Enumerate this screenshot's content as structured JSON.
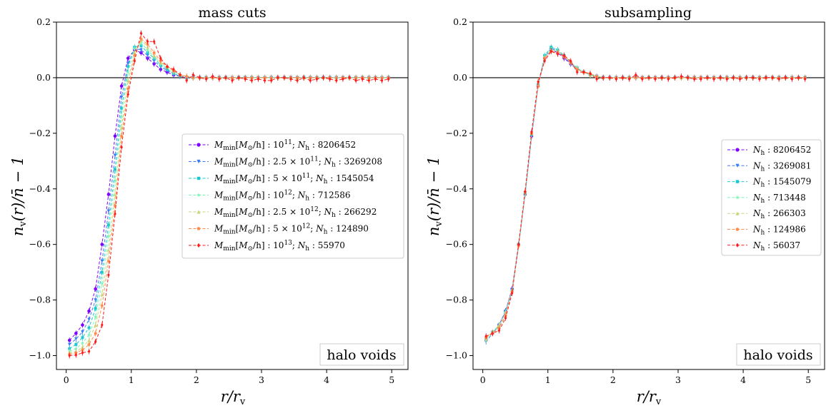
{
  "chart_data": [
    {
      "type": "line",
      "title": "mass cuts",
      "xlabel": "r/r_v",
      "ylabel": "n_v(r)/n̄ − 1",
      "xlim": [
        -0.15,
        5.25
      ],
      "ylim": [
        -1.05,
        0.2
      ],
      "xticks": [
        "0",
        "1",
        "2",
        "3",
        "4",
        "5"
      ],
      "yticks": [
        "−1.0",
        "−0.8",
        "−0.6",
        "−0.4",
        "−0.2",
        "0.0",
        "0.2"
      ],
      "annotation": "halo voids",
      "legend_position": "center-right",
      "reference_line_y": 0.0,
      "x": [
        0.05,
        0.15,
        0.25,
        0.35,
        0.45,
        0.55,
        0.65,
        0.75,
        0.85,
        0.95,
        1.05,
        1.15,
        1.25,
        1.35,
        1.45,
        1.55,
        1.65,
        1.75,
        1.85,
        1.95,
        2.05,
        2.15,
        2.25,
        2.35,
        2.45,
        2.55,
        2.65,
        2.75,
        2.85,
        2.95,
        3.05,
        3.15,
        3.25,
        3.35,
        3.45,
        3.55,
        3.65,
        3.75,
        3.85,
        3.95,
        4.05,
        4.15,
        4.25,
        4.35,
        4.45,
        4.55,
        4.65,
        4.75,
        4.85,
        4.95
      ],
      "series": [
        {
          "name": "M_min[M_⊙/h] : 10^11; N_h : 8206452",
          "color": "#7f00ff",
          "marker": "o",
          "values": [
            -0.945,
            -0.92,
            -0.89,
            -0.84,
            -0.76,
            -0.6,
            -0.42,
            -0.21,
            -0.03,
            0.07,
            0.1,
            0.09,
            0.07,
            0.05,
            0.03,
            0.02,
            0.01,
            0.005,
            0.0,
            0.0,
            0.0,
            0.0,
            0.0,
            0.0,
            0.0,
            0.0,
            0.0,
            0.0,
            0.0,
            0.0,
            0.0,
            0.0,
            0.0,
            0.0,
            0.0,
            0.0,
            0.0,
            0.0,
            0.0,
            0.0,
            0.0,
            0.0,
            0.0,
            0.0,
            0.0,
            0.0,
            0.0,
            0.0,
            0.0,
            0.0
          ]
        },
        {
          "name": "M_min[M_⊙/h] : 2.5 × 10^11; N_h : 3269208",
          "color": "#3b7cf6",
          "marker": "v",
          "values": [
            -0.96,
            -0.94,
            -0.915,
            -0.87,
            -0.8,
            -0.66,
            -0.48,
            -0.28,
            -0.07,
            0.05,
            0.105,
            0.1,
            0.08,
            0.06,
            0.04,
            0.025,
            0.015,
            0.005,
            0.0,
            0.0,
            0.0,
            0.0,
            0.0,
            0.0,
            0.0,
            0.0,
            0.0,
            0.0,
            0.0,
            0.0,
            0.0,
            0.0,
            0.0,
            0.0,
            0.0,
            0.0,
            0.0,
            0.0,
            0.0,
            0.0,
            0.0,
            0.0,
            0.0,
            0.0,
            0.0,
            0.0,
            0.0,
            0.0,
            0.0,
            0.0
          ]
        },
        {
          "name": "M_min[M_⊙/h] : 5 × 10^11; N_h : 1545054",
          "color": "#1cc8cf",
          "marker": "s",
          "values": [
            -0.975,
            -0.96,
            -0.935,
            -0.9,
            -0.83,
            -0.7,
            -0.53,
            -0.33,
            -0.11,
            0.04,
            0.11,
            0.115,
            0.09,
            0.07,
            0.045,
            0.03,
            0.015,
            0.005,
            0.0,
            0.0,
            0.0,
            0.0,
            0.0,
            0.0,
            0.0,
            0.0,
            0.0,
            0.0,
            0.0,
            0.0,
            0.0,
            0.0,
            0.0,
            0.0,
            0.0,
            0.0,
            0.0,
            0.0,
            0.0,
            0.0,
            0.0,
            0.0,
            0.0,
            0.0,
            0.0,
            0.0,
            0.0,
            0.0,
            0.0,
            0.0
          ]
        },
        {
          "name": "M_min[M_⊙/h] : 10^12; N_h : 712586",
          "color": "#7ff5b8",
          "marker": "*",
          "values": [
            -0.985,
            -0.975,
            -0.955,
            -0.925,
            -0.86,
            -0.74,
            -0.57,
            -0.37,
            -0.14,
            0.02,
            0.105,
            0.125,
            0.1,
            0.075,
            0.05,
            0.035,
            0.02,
            0.01,
            0.005,
            0.0,
            0.0,
            0.0,
            0.0,
            0.0,
            0.0,
            0.0,
            0.0,
            0.0,
            0.0,
            0.0,
            0.0,
            0.0,
            0.0,
            0.0,
            0.0,
            0.0,
            0.0,
            0.0,
            0.0,
            0.0,
            0.0,
            0.0,
            0.0,
            0.0,
            0.0,
            0.0,
            0.0,
            0.0,
            0.0,
            0.0
          ]
        },
        {
          "name": "M_min[M_⊙/h] : 2.5 × 10^12; N_h : 266292",
          "color": "#c7d77a",
          "marker": "^",
          "values": [
            -0.99,
            -0.985,
            -0.97,
            -0.945,
            -0.89,
            -0.78,
            -0.62,
            -0.42,
            -0.18,
            -0.01,
            0.09,
            0.135,
            0.11,
            0.08,
            0.055,
            0.04,
            0.025,
            0.01,
            0.005,
            0.0,
            0.0,
            0.0,
            0.0,
            0.0,
            0.0,
            0.0,
            0.0,
            0.0,
            0.0,
            0.0,
            0.0,
            0.0,
            0.0,
            0.0,
            0.0,
            0.0,
            0.0,
            0.0,
            0.0,
            0.0,
            0.0,
            0.0,
            0.0,
            0.0,
            0.0,
            0.0,
            0.0,
            0.0,
            0.0,
            0.0
          ]
        },
        {
          "name": "M_min[M_⊙/h] : 5 × 10^12; N_h : 124890",
          "color": "#ff8c4d",
          "marker": "p",
          "values": [
            -0.995,
            -0.99,
            -0.98,
            -0.96,
            -0.92,
            -0.82,
            -0.66,
            -0.46,
            -0.21,
            -0.04,
            0.08,
            0.14,
            0.12,
            0.09,
            0.06,
            0.04,
            0.025,
            0.01,
            0.005,
            0.0,
            0.0,
            0.0,
            0.0,
            0.0,
            0.0,
            0.0,
            0.0,
            0.0,
            0.0,
            0.0,
            0.0,
            0.0,
            0.0,
            0.0,
            0.0,
            0.0,
            0.0,
            0.0,
            0.0,
            0.0,
            0.0,
            0.0,
            0.0,
            0.0,
            0.0,
            0.0,
            0.0,
            0.0,
            0.0,
            0.0
          ]
        },
        {
          "name": "M_min[M_⊙/h] : 10^13; N_h : 55970",
          "color": "#ff1a1a",
          "marker": "d",
          "values": [
            -1.0,
            -0.998,
            -0.99,
            -0.985,
            -0.95,
            -0.89,
            -0.71,
            -0.49,
            -0.25,
            -0.06,
            0.06,
            0.16,
            0.13,
            0.13,
            0.07,
            0.04,
            0.03,
            0.01,
            -0.01,
            0.01,
            0.0,
            -0.005,
            0.005,
            -0.005,
            0.0,
            -0.01,
            0.0,
            -0.005,
            -0.01,
            -0.005,
            -0.01,
            -0.01,
            0.0,
            0.0,
            -0.005,
            -0.01,
            0.0,
            -0.01,
            -0.005,
            0.0,
            -0.005,
            -0.01,
            -0.005,
            0.0,
            -0.01,
            -0.005,
            -0.01,
            -0.005,
            -0.01,
            -0.005
          ]
        }
      ]
    },
    {
      "type": "line",
      "title": "subsampling",
      "xlabel": "r/r_v",
      "ylabel": "n_v(r)/n̄ − 1",
      "xlim": [
        -0.15,
        5.25
      ],
      "ylim": [
        -1.05,
        0.2
      ],
      "xticks": [
        "0",
        "1",
        "2",
        "3",
        "4",
        "5"
      ],
      "yticks": [
        "−1.0",
        "−0.8",
        "−0.6",
        "−0.4",
        "−0.2",
        "0.0",
        "0.2"
      ],
      "annotation": "halo voids",
      "legend_position": "center-right",
      "reference_line_y": 0.0,
      "x": [
        0.05,
        0.15,
        0.25,
        0.35,
        0.45,
        0.55,
        0.65,
        0.75,
        0.85,
        0.95,
        1.05,
        1.15,
        1.25,
        1.35,
        1.45,
        1.55,
        1.65,
        1.75,
        1.85,
        1.95,
        2.05,
        2.15,
        2.25,
        2.35,
        2.45,
        2.55,
        2.65,
        2.75,
        2.85,
        2.95,
        3.05,
        3.15,
        3.25,
        3.35,
        3.45,
        3.55,
        3.65,
        3.75,
        3.85,
        3.95,
        4.05,
        4.15,
        4.25,
        4.35,
        4.45,
        4.55,
        4.65,
        4.75,
        4.85,
        4.95
      ],
      "series": [
        {
          "name": "N_h : 8206452",
          "color": "#7f00ff",
          "marker": "o",
          "values": [
            -0.945,
            -0.92,
            -0.89,
            -0.84,
            -0.76,
            -0.6,
            -0.42,
            -0.21,
            -0.03,
            0.07,
            0.1,
            0.09,
            0.07,
            0.05,
            0.03,
            0.02,
            0.01,
            0.005,
            0.0,
            0.0,
            0.0,
            0.0,
            0.0,
            0.0,
            0.0,
            0.0,
            0.0,
            0.0,
            0.0,
            0.0,
            0.0,
            0.0,
            0.0,
            0.0,
            0.0,
            0.0,
            0.0,
            0.0,
            0.0,
            0.0,
            0.0,
            0.0,
            0.0,
            0.0,
            0.0,
            0.0,
            0.0,
            0.0,
            0.0,
            0.0
          ]
        },
        {
          "name": "N_h : 3269081",
          "color": "#3b7cf6",
          "marker": "v",
          "values": [
            -0.95,
            -0.92,
            -0.89,
            -0.84,
            -0.765,
            -0.605,
            -0.42,
            -0.21,
            -0.03,
            0.075,
            0.105,
            0.095,
            0.075,
            0.05,
            0.03,
            0.02,
            0.01,
            0.005,
            0.0,
            0.0,
            0.0,
            0.0,
            0.0,
            0.0,
            0.0,
            0.0,
            0.0,
            0.0,
            0.0,
            0.0,
            0.0,
            0.0,
            0.0,
            0.0,
            0.0,
            0.0,
            0.0,
            0.0,
            0.0,
            0.0,
            0.0,
            0.0,
            0.0,
            0.0,
            0.0,
            0.0,
            0.0,
            0.0,
            0.0,
            0.0
          ]
        },
        {
          "name": "N_h : 1545079",
          "color": "#1cc8cf",
          "marker": "s",
          "values": [
            -0.94,
            -0.915,
            -0.895,
            -0.845,
            -0.765,
            -0.6,
            -0.415,
            -0.205,
            -0.025,
            0.08,
            0.11,
            0.1,
            0.08,
            0.055,
            0.035,
            0.02,
            0.01,
            0.005,
            0.0,
            0.0,
            0.0,
            0.0,
            0.0,
            0.0,
            0.0,
            0.0,
            0.0,
            0.0,
            0.0,
            0.0,
            0.0,
            0.0,
            0.0,
            0.0,
            0.0,
            0.0,
            0.0,
            0.0,
            0.0,
            0.0,
            0.0,
            0.0,
            0.0,
            0.0,
            0.0,
            0.0,
            0.0,
            0.0,
            0.0,
            0.0
          ]
        },
        {
          "name": "N_h : 713448",
          "color": "#7ff5b8",
          "marker": "*",
          "values": [
            -0.945,
            -0.92,
            -0.895,
            -0.845,
            -0.77,
            -0.6,
            -0.42,
            -0.2,
            -0.03,
            0.075,
            0.1,
            0.095,
            0.075,
            0.055,
            0.035,
            0.02,
            0.01,
            0.005,
            0.0,
            0.0,
            0.0,
            0.0,
            0.0,
            0.0,
            0.0,
            0.0,
            0.0,
            0.0,
            0.0,
            0.0,
            0.0,
            0.0,
            0.0,
            0.0,
            0.0,
            0.0,
            0.0,
            0.0,
            0.0,
            0.0,
            0.0,
            0.0,
            0.0,
            0.0,
            0.0,
            0.0,
            0.0,
            0.0,
            0.0,
            0.0
          ]
        },
        {
          "name": "N_h : 266303",
          "color": "#c7d77a",
          "marker": "^",
          "values": [
            -0.94,
            -0.915,
            -0.89,
            -0.85,
            -0.765,
            -0.6,
            -0.41,
            -0.2,
            -0.03,
            0.07,
            0.1,
            0.095,
            0.08,
            0.055,
            0.03,
            0.02,
            0.01,
            0.005,
            0.0,
            0.0,
            0.0,
            0.0,
            0.0,
            0.0,
            0.0,
            0.0,
            0.0,
            0.0,
            0.0,
            0.0,
            0.0,
            0.0,
            0.0,
            0.0,
            0.0,
            0.0,
            0.0,
            0.0,
            0.0,
            0.0,
            0.0,
            0.0,
            0.0,
            0.0,
            0.0,
            0.0,
            0.0,
            0.0,
            0.0,
            0.0
          ]
        },
        {
          "name": "N_h : 124986",
          "color": "#ff8c4d",
          "marker": "p",
          "values": [
            -0.935,
            -0.92,
            -0.9,
            -0.855,
            -0.77,
            -0.605,
            -0.41,
            -0.2,
            -0.03,
            0.07,
            0.095,
            0.09,
            0.075,
            0.055,
            0.03,
            0.02,
            0.015,
            0.005,
            0.0,
            0.0,
            0.0,
            0.0,
            0.0,
            0.0,
            0.0,
            0.0,
            0.0,
            0.0,
            0.0,
            0.0,
            0.0,
            0.0,
            0.0,
            0.0,
            0.0,
            0.0,
            0.0,
            0.0,
            0.0,
            0.0,
            0.0,
            0.0,
            0.0,
            0.0,
            0.0,
            0.0,
            0.0,
            0.0,
            0.0,
            0.0
          ]
        },
        {
          "name": "N_h : 56037",
          "color": "#ff1a1a",
          "marker": "d",
          "values": [
            -0.93,
            -0.92,
            -0.91,
            -0.865,
            -0.775,
            -0.6,
            -0.41,
            -0.195,
            -0.015,
            0.06,
            0.095,
            0.085,
            0.08,
            0.06,
            0.02,
            0.02,
            0.015,
            -0.005,
            0.0,
            0.0,
            -0.005,
            0.0,
            -0.005,
            0.01,
            -0.005,
            0.0,
            -0.005,
            0.0,
            -0.005,
            0.0,
            0.005,
            0.0,
            -0.005,
            -0.005,
            0.0,
            -0.005,
            0.0,
            -0.005,
            0.0,
            -0.005,
            0.0,
            0.0,
            -0.005,
            0.0,
            0.0,
            -0.005,
            0.0,
            -0.005,
            0.0,
            -0.005
          ]
        }
      ]
    }
  ]
}
